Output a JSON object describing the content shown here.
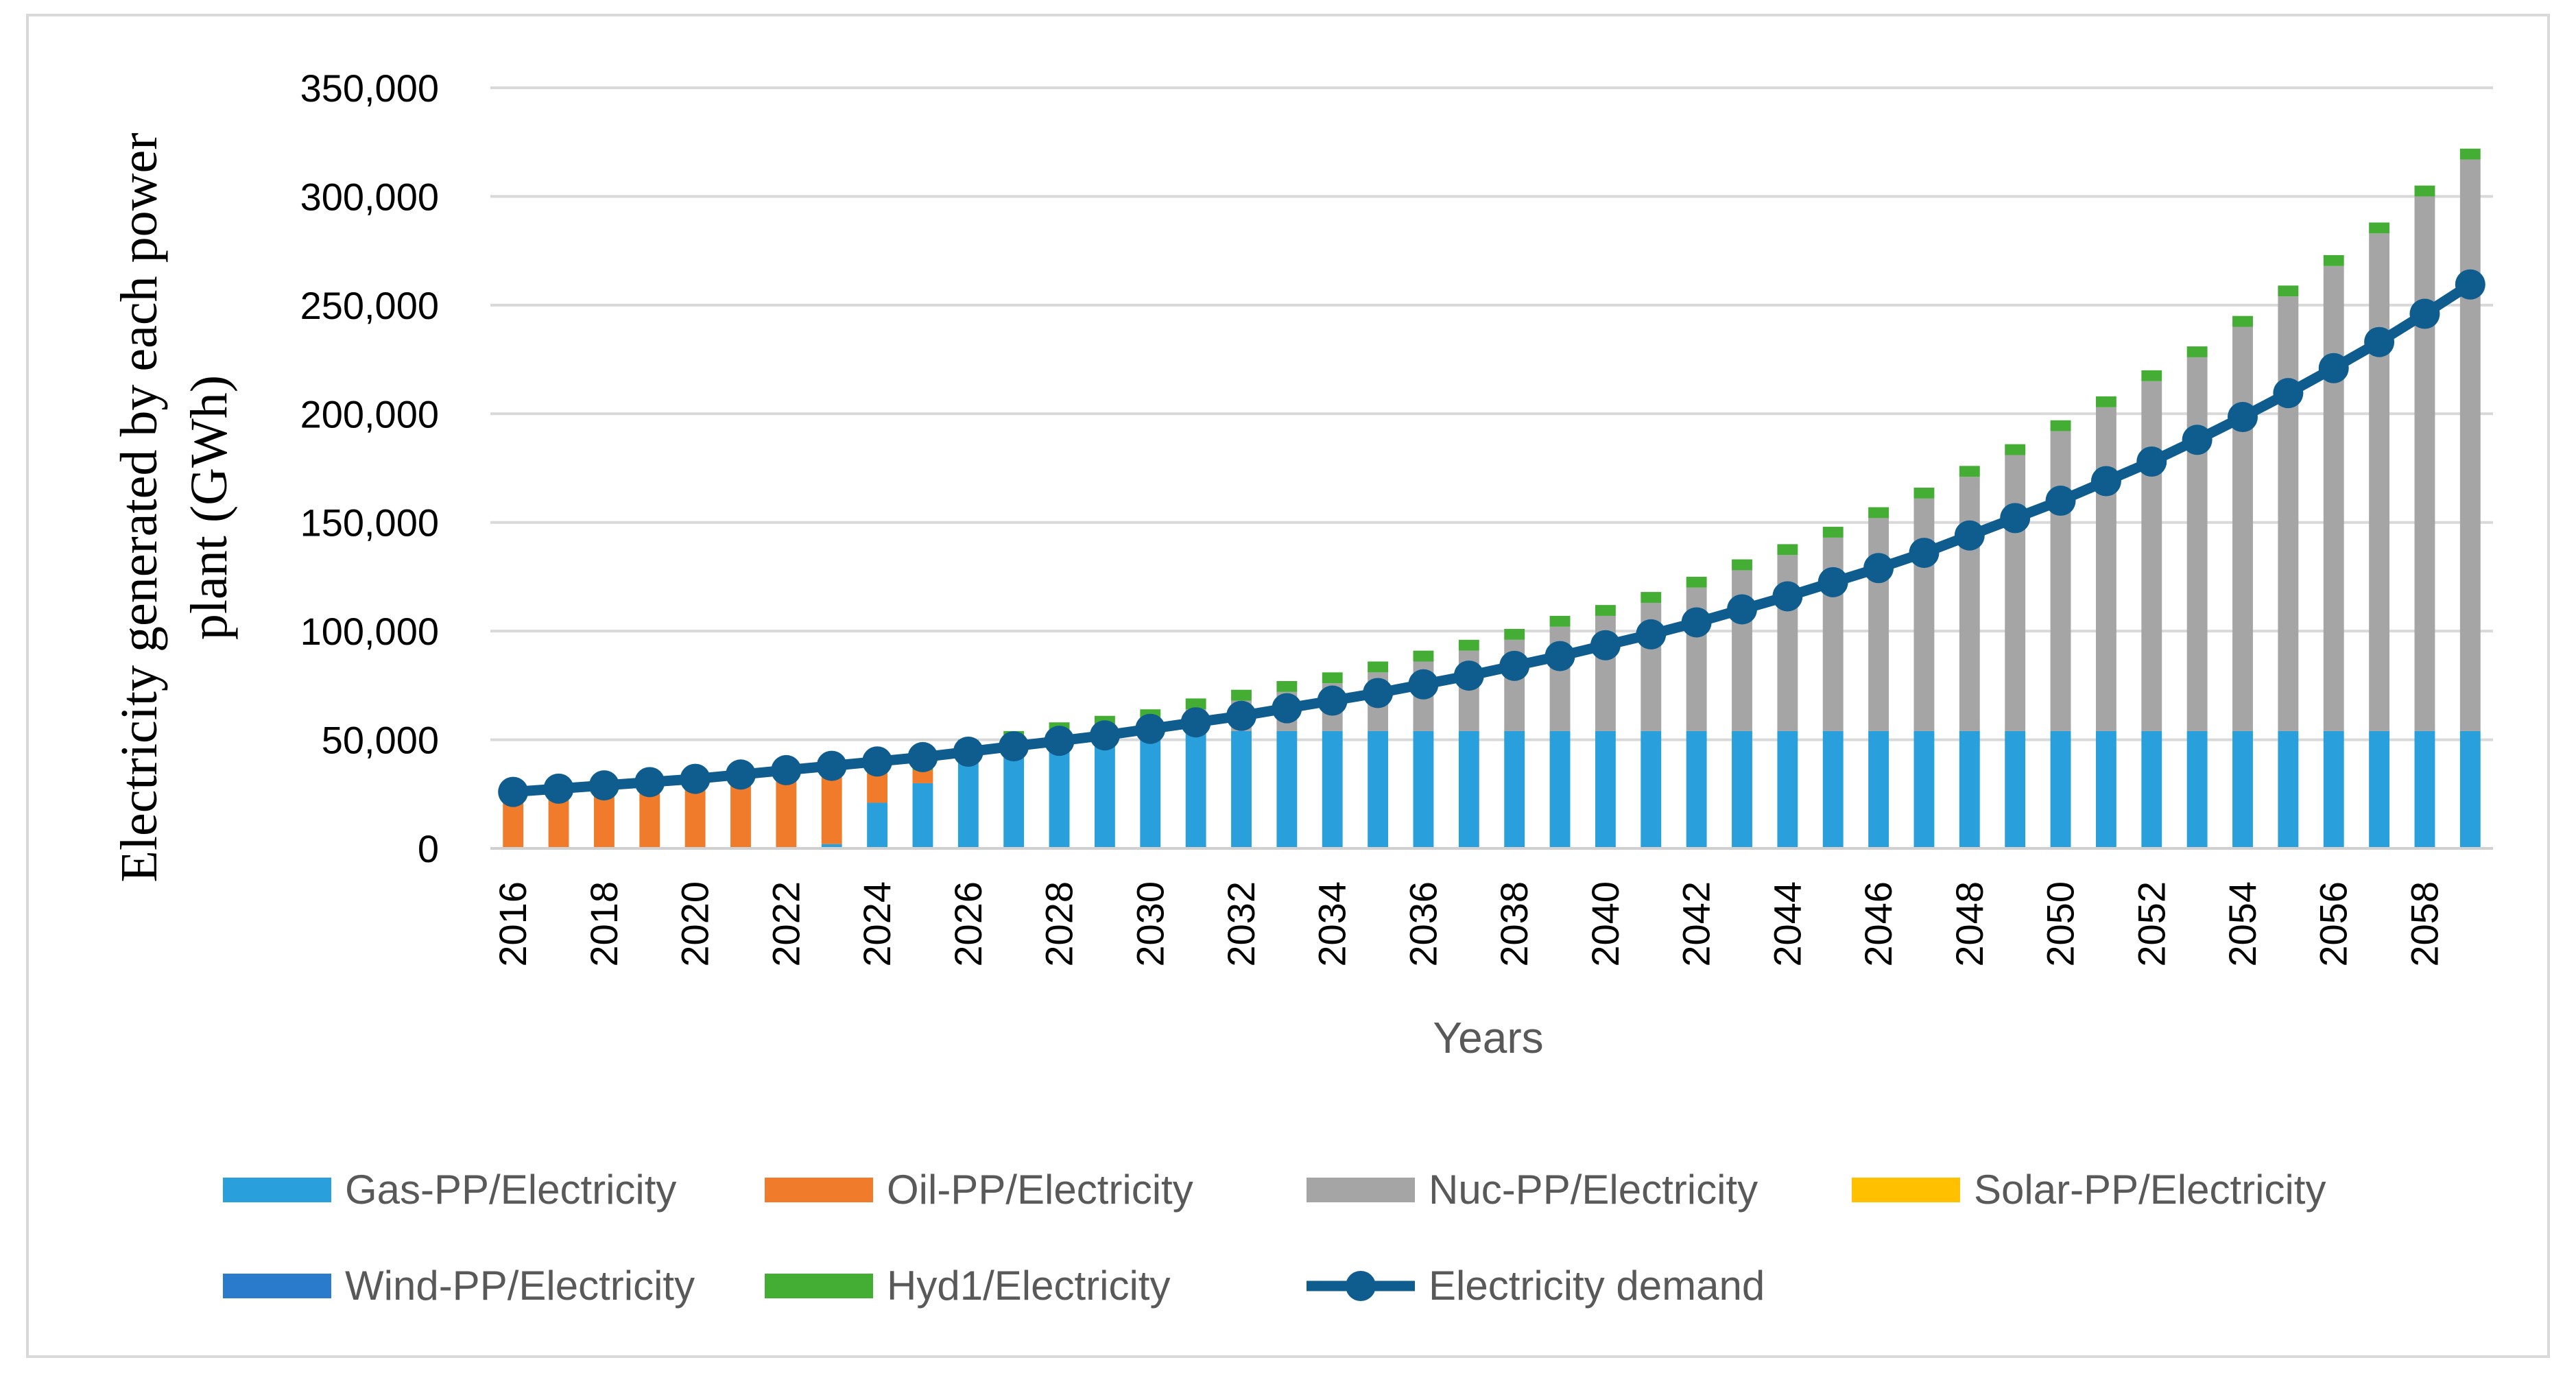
{
  "chart_data": {
    "type": "bar",
    "stacked": true,
    "title": "",
    "ylabel_lines": [
      "Electricity generated by each power",
      "plant (GWh)"
    ],
    "xlabel": "Years",
    "ylim": [
      0,
      350000
    ],
    "yticks": [
      0,
      50000,
      100000,
      150000,
      200000,
      250000,
      300000,
      350000
    ],
    "ytick_labels": [
      "0",
      "50,000",
      "100,000",
      "150,000",
      "200,000",
      "250,000",
      "300,000",
      "350,000"
    ],
    "grid": true,
    "legend_position": "bottom",
    "x": [
      2016,
      2017,
      2018,
      2019,
      2020,
      2021,
      2022,
      2023,
      2024,
      2025,
      2026,
      2027,
      2028,
      2029,
      2030,
      2031,
      2032,
      2033,
      2034,
      2035,
      2036,
      2037,
      2038,
      2039,
      2040,
      2041,
      2042,
      2043,
      2044,
      2045,
      2046,
      2047,
      2048,
      2049,
      2050,
      2051,
      2052,
      2053,
      2054,
      2055,
      2056,
      2057,
      2058,
      2059
    ],
    "xtick_labels": [
      "2016",
      "2018",
      "2020",
      "2022",
      "2024",
      "2026",
      "2028",
      "2030",
      "2032",
      "2034",
      "2036",
      "2038",
      "2040",
      "2042",
      "2044",
      "2046",
      "2048",
      "2050",
      "2052",
      "2054",
      "2056",
      "2058"
    ],
    "series": [
      {
        "name": "Gas-PP/Electricity",
        "color": "#29a0dc",
        "values": [
          0,
          0,
          0,
          0,
          0,
          0,
          0,
          2000,
          21000,
          30000,
          45000,
          47000,
          49000,
          51000,
          53000,
          53000,
          54000,
          54000,
          54000,
          54000,
          54000,
          54000,
          54000,
          54000,
          54000,
          54000,
          54000,
          54000,
          54000,
          54000,
          54000,
          54000,
          54000,
          54000,
          54000,
          54000,
          54000,
          54000,
          54000,
          54000,
          54000,
          54000,
          54000,
          54000
        ]
      },
      {
        "name": "Oil-PP/Electricity",
        "color": "#f07b2a",
        "values": [
          22000,
          22000,
          24000,
          26000,
          30000,
          32000,
          36000,
          33000,
          14000,
          6000,
          0,
          0,
          0,
          0,
          0,
          0,
          0,
          0,
          0,
          0,
          0,
          0,
          0,
          0,
          0,
          0,
          0,
          0,
          0,
          0,
          0,
          0,
          0,
          0,
          0,
          0,
          0,
          0,
          0,
          0,
          0,
          0,
          0,
          0
        ]
      },
      {
        "name": "Nuc-PP/Electricity",
        "color": "#a5a5a5",
        "values": [
          0,
          0,
          0,
          0,
          0,
          0,
          0,
          0,
          0,
          0,
          0,
          2000,
          4000,
          5000,
          6000,
          11000,
          14000,
          18000,
          22000,
          27000,
          32000,
          37000,
          42000,
          48000,
          53000,
          59000,
          66000,
          74000,
          81000,
          89000,
          98000,
          107000,
          117000,
          127000,
          138000,
          149000,
          161000,
          172000,
          186000,
          200000,
          214000,
          229000,
          246000,
          263000
        ]
      },
      {
        "name": "Solar-PP/Electricity",
        "color": "#ffc000",
        "values": [
          0,
          0,
          0,
          0,
          0,
          0,
          0,
          0,
          0,
          0,
          0,
          0,
          0,
          0,
          0,
          0,
          0,
          0,
          0,
          0,
          0,
          0,
          0,
          0,
          0,
          0,
          0,
          0,
          0,
          0,
          0,
          0,
          0,
          0,
          0,
          0,
          0,
          0,
          0,
          0,
          0,
          0,
          0,
          0
        ]
      },
      {
        "name": "Wind-PP/Electricity",
        "color": "#2b7bcd",
        "values": [
          0,
          0,
          0,
          0,
          0,
          0,
          0,
          0,
          0,
          0,
          0,
          0,
          0,
          0,
          0,
          0,
          0,
          0,
          0,
          0,
          0,
          0,
          0,
          0,
          0,
          0,
          0,
          0,
          0,
          0,
          0,
          0,
          0,
          0,
          0,
          0,
          0,
          0,
          0,
          0,
          0,
          0,
          0,
          0
        ]
      },
      {
        "name": "Hyd1/Electricity",
        "color": "#43ad34",
        "values": [
          5000,
          5000,
          5000,
          5000,
          5000,
          5000,
          5000,
          5000,
          5000,
          5000,
          5000,
          5000,
          5000,
          5000,
          5000,
          5000,
          5000,
          5000,
          5000,
          5000,
          5000,
          5000,
          5000,
          5000,
          5000,
          5000,
          5000,
          5000,
          5000,
          5000,
          5000,
          5000,
          5000,
          5000,
          5000,
          5000,
          5000,
          5000,
          5000,
          5000,
          5000,
          5000,
          5000,
          5000
        ]
      }
    ],
    "line": {
      "name": "Electricity demand",
      "color": "#0f5d8f",
      "values": [
        26000,
        27500,
        29000,
        30500,
        32000,
        34000,
        36000,
        38000,
        40000,
        42000,
        44500,
        47000,
        49500,
        52000,
        55000,
        58000,
        61000,
        64500,
        68000,
        71500,
        75500,
        79500,
        84000,
        88500,
        93500,
        98500,
        104000,
        110000,
        116000,
        122500,
        129000,
        136000,
        144000,
        152000,
        160000,
        169000,
        178000,
        188000,
        198500,
        209500,
        221000,
        233000,
        246000,
        259500
      ]
    }
  }
}
